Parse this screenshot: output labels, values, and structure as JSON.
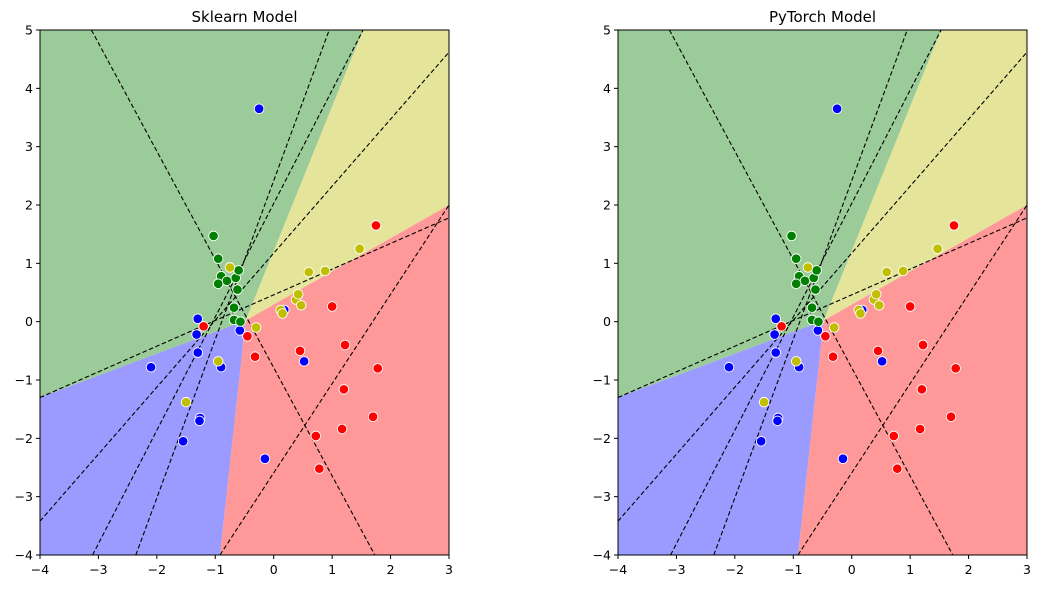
{
  "chart_data": [
    {
      "type": "scatter",
      "title": "Sklearn Model",
      "xlim": [
        -4,
        3
      ],
      "ylim": [
        -4,
        5
      ],
      "xticks": [
        -4,
        -3,
        -2,
        -1,
        0,
        1,
        2,
        3
      ],
      "yticks": [
        -4,
        -3,
        -2,
        -1,
        0,
        1,
        2,
        3,
        4,
        5
      ],
      "grid": false,
      "region_colors": {
        "green": "#9acb98",
        "yellow": "#e4e59a",
        "red": "#ff9999",
        "blue": "#9a9aff"
      },
      "regions": [
        {
          "class": "green",
          "polygon": [
            [
              -4,
              5
            ],
            [
              1.53,
              5
            ],
            [
              -0.48,
              0.02
            ],
            [
              -4,
              -1.3
            ]
          ]
        },
        {
          "class": "yellow",
          "polygon": [
            [
              1.53,
              5
            ],
            [
              3,
              5
            ],
            [
              3,
              2.0
            ],
            [
              -0.48,
              0.02
            ]
          ]
        },
        {
          "class": "red",
          "polygon": [
            [
              3,
              2.0
            ],
            [
              3,
              -4
            ],
            [
              -0.92,
              -4
            ],
            [
              -0.48,
              0.02
            ]
          ]
        },
        {
          "class": "blue",
          "polygon": [
            [
              -0.92,
              -4
            ],
            [
              -4,
              -4
            ],
            [
              -4,
              -1.3
            ],
            [
              -0.48,
              0.02
            ]
          ]
        }
      ],
      "lines": [
        [
          [
            -3.12,
            5
          ],
          [
            1.73,
            -4
          ]
        ],
        [
          [
            -4,
            -1.3
          ],
          [
            3,
            1.78
          ]
        ],
        [
          [
            -4,
            -3.42
          ],
          [
            3,
            4.62
          ]
        ],
        [
          [
            -3.1,
            -4
          ],
          [
            1.53,
            5
          ]
        ],
        [
          [
            -2.36,
            -4
          ],
          [
            0.95,
            5
          ]
        ],
        [
          [
            -0.92,
            -4
          ],
          [
            3,
            2.0
          ]
        ]
      ],
      "series": [
        {
          "color": "#0000ff",
          "points": [
            [
              -0.25,
              3.65
            ],
            [
              -2.1,
              -0.78
            ],
            [
              -1.3,
              0.05
            ],
            [
              -1.32,
              -0.22
            ],
            [
              -1.3,
              -0.53
            ],
            [
              -0.58,
              -0.15
            ],
            [
              -0.9,
              -0.78
            ],
            [
              -1.26,
              -1.65
            ],
            [
              -1.27,
              -1.7
            ],
            [
              -1.55,
              -2.05
            ],
            [
              -0.15,
              -2.35
            ],
            [
              0.52,
              -0.68
            ],
            [
              0.18,
              0.2
            ]
          ]
        },
        {
          "color": "#ff0000",
          "points": [
            [
              1.75,
              1.65
            ],
            [
              1.0,
              0.26
            ],
            [
              1.22,
              -0.4
            ],
            [
              0.45,
              -0.5
            ],
            [
              1.78,
              -0.8
            ],
            [
              1.2,
              -1.16
            ],
            [
              1.7,
              -1.63
            ],
            [
              1.17,
              -1.84
            ],
            [
              0.72,
              -1.96
            ],
            [
              0.78,
              -2.52
            ],
            [
              -0.32,
              -0.6
            ],
            [
              -0.45,
              -0.25
            ],
            [
              -1.2,
              -0.08
            ]
          ]
        },
        {
          "color": "#008000",
          "points": [
            [
              -1.03,
              1.47
            ],
            [
              -0.95,
              1.08
            ],
            [
              -0.9,
              0.78
            ],
            [
              -0.8,
              0.7
            ],
            [
              -0.65,
              0.75
            ],
            [
              -0.6,
              0.88
            ],
            [
              -0.95,
              0.65
            ],
            [
              -0.62,
              0.55
            ],
            [
              -0.68,
              0.24
            ],
            [
              -0.68,
              0.03
            ],
            [
              -0.57,
              0.0
            ]
          ]
        },
        {
          "color": "#bfbf00",
          "points": [
            [
              -0.75,
              0.93
            ],
            [
              1.47,
              1.25
            ],
            [
              0.6,
              0.85
            ],
            [
              0.88,
              0.87
            ],
            [
              0.38,
              0.38
            ],
            [
              0.42,
              0.47
            ],
            [
              0.47,
              0.28
            ],
            [
              0.12,
              0.2
            ],
            [
              0.15,
              0.14
            ],
            [
              -0.3,
              -0.1
            ],
            [
              -0.95,
              -0.68
            ],
            [
              -1.5,
              -1.38
            ]
          ]
        }
      ]
    },
    {
      "type": "scatter",
      "title": "PyTorch Model",
      "xlim": [
        -4,
        3
      ],
      "ylim": [
        -4,
        5
      ],
      "xticks": [
        -4,
        -3,
        -2,
        -1,
        0,
        1,
        2,
        3
      ],
      "yticks": [
        -4,
        -3,
        -2,
        -1,
        0,
        1,
        2,
        3,
        4,
        5
      ],
      "grid": false,
      "region_colors": {
        "green": "#9acb98",
        "yellow": "#e4e59a",
        "red": "#ff9999",
        "blue": "#9a9aff"
      },
      "regions": [
        {
          "class": "green",
          "polygon": [
            [
              -4,
              5
            ],
            [
              1.53,
              5
            ],
            [
              -0.48,
              0.02
            ],
            [
              -4,
              -1.3
            ]
          ]
        },
        {
          "class": "yellow",
          "polygon": [
            [
              1.53,
              5
            ],
            [
              3,
              5
            ],
            [
              3,
              2.0
            ],
            [
              -0.48,
              0.02
            ]
          ]
        },
        {
          "class": "red",
          "polygon": [
            [
              3,
              2.0
            ],
            [
              3,
              -4
            ],
            [
              -0.92,
              -4
            ],
            [
              -0.48,
              0.02
            ]
          ]
        },
        {
          "class": "blue",
          "polygon": [
            [
              -0.92,
              -4
            ],
            [
              -4,
              -4
            ],
            [
              -4,
              -1.3
            ],
            [
              -0.48,
              0.02
            ]
          ]
        }
      ],
      "lines": [
        [
          [
            -3.12,
            5
          ],
          [
            1.73,
            -4
          ]
        ],
        [
          [
            -4,
            -1.3
          ],
          [
            3,
            1.78
          ]
        ],
        [
          [
            -4,
            -3.42
          ],
          [
            3,
            4.62
          ]
        ],
        [
          [
            -3.1,
            -4
          ],
          [
            1.53,
            5
          ]
        ],
        [
          [
            -2.36,
            -4
          ],
          [
            0.95,
            5
          ]
        ],
        [
          [
            -0.92,
            -4
          ],
          [
            3,
            2.0
          ]
        ]
      ],
      "series": [
        {
          "color": "#0000ff",
          "points": [
            [
              -0.25,
              3.65
            ],
            [
              -2.1,
              -0.78
            ],
            [
              -1.3,
              0.05
            ],
            [
              -1.32,
              -0.22
            ],
            [
              -1.3,
              -0.53
            ],
            [
              -0.58,
              -0.15
            ],
            [
              -0.9,
              -0.78
            ],
            [
              -1.26,
              -1.65
            ],
            [
              -1.27,
              -1.7
            ],
            [
              -1.55,
              -2.05
            ],
            [
              -0.15,
              -2.35
            ],
            [
              0.52,
              -0.68
            ],
            [
              0.18,
              0.2
            ]
          ]
        },
        {
          "color": "#ff0000",
          "points": [
            [
              1.75,
              1.65
            ],
            [
              1.0,
              0.26
            ],
            [
              1.22,
              -0.4
            ],
            [
              0.45,
              -0.5
            ],
            [
              1.78,
              -0.8
            ],
            [
              1.2,
              -1.16
            ],
            [
              1.7,
              -1.63
            ],
            [
              1.17,
              -1.84
            ],
            [
              0.72,
              -1.96
            ],
            [
              0.78,
              -2.52
            ],
            [
              -0.32,
              -0.6
            ],
            [
              -0.45,
              -0.25
            ],
            [
              -1.2,
              -0.08
            ]
          ]
        },
        {
          "color": "#008000",
          "points": [
            [
              -1.03,
              1.47
            ],
            [
              -0.95,
              1.08
            ],
            [
              -0.9,
              0.78
            ],
            [
              -0.8,
              0.7
            ],
            [
              -0.65,
              0.75
            ],
            [
              -0.6,
              0.88
            ],
            [
              -0.95,
              0.65
            ],
            [
              -0.62,
              0.55
            ],
            [
              -0.68,
              0.24
            ],
            [
              -0.68,
              0.03
            ],
            [
              -0.57,
              0.0
            ]
          ]
        },
        {
          "color": "#bfbf00",
          "points": [
            [
              -0.75,
              0.93
            ],
            [
              1.47,
              1.25
            ],
            [
              0.6,
              0.85
            ],
            [
              0.88,
              0.87
            ],
            [
              0.38,
              0.38
            ],
            [
              0.42,
              0.47
            ],
            [
              0.47,
              0.28
            ],
            [
              0.12,
              0.2
            ],
            [
              0.15,
              0.14
            ],
            [
              -0.3,
              -0.1
            ],
            [
              -0.95,
              -0.68
            ],
            [
              -1.5,
              -1.38
            ]
          ]
        }
      ]
    }
  ]
}
